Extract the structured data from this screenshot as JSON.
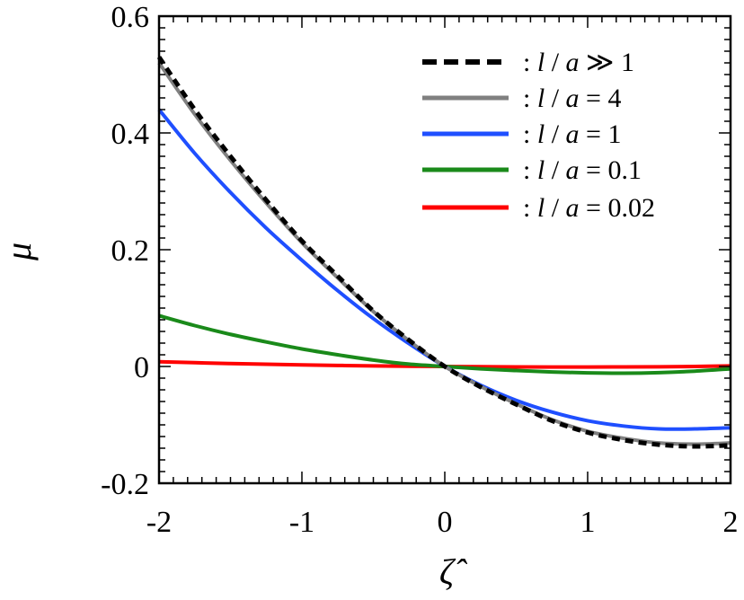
{
  "chart_data": {
    "type": "line",
    "title": "",
    "xlabel": "ζ̂",
    "ylabel": "μ",
    "xlim": [
      -2,
      2
    ],
    "ylim": [
      -0.2,
      0.6
    ],
    "x_ticks": [
      -2,
      -1,
      0,
      1,
      2
    ],
    "x_tick_labels": [
      "-2",
      "-1",
      "0",
      "1",
      "2"
    ],
    "y_ticks": [
      -0.2,
      0,
      0.2,
      0.4,
      0.6
    ],
    "y_tick_labels": [
      "-0.2",
      "0",
      "0.2",
      "0.4",
      "0.6"
    ],
    "grid": false,
    "legend_position": "top-right",
    "series": [
      {
        "name": ": l / a ≫ 1",
        "legend_prefix": ": ",
        "legend_var1": "l",
        "legend_mid": " / ",
        "legend_var2": "a",
        "legend_rel": " ≫ 1",
        "color": "#000000",
        "dash": true,
        "x": [
          -2,
          -1.75,
          -1.5,
          -1.25,
          -1,
          -0.75,
          -0.5,
          -0.25,
          0,
          0.25,
          0.5,
          0.75,
          1,
          1.25,
          1.5,
          1.75,
          2
        ],
        "y": [
          0.53,
          0.44,
          0.36,
          0.285,
          0.215,
          0.155,
          0.095,
          0.045,
          0.0,
          -0.035,
          -0.065,
          -0.093,
          -0.113,
          -0.126,
          -0.134,
          -0.137,
          -0.135
        ]
      },
      {
        "name": ": l / a = 4",
        "legend_prefix": ": ",
        "legend_var1": "l",
        "legend_mid": " / ",
        "legend_var2": "a",
        "legend_rel": " = 4",
        "color": "#808080",
        "dash": false,
        "x": [
          -2,
          -1.75,
          -1.5,
          -1.25,
          -1,
          -0.75,
          -0.5,
          -0.25,
          0,
          0.25,
          0.5,
          0.75,
          1,
          1.25,
          1.5,
          1.75,
          2
        ],
        "y": [
          0.52,
          0.432,
          0.353,
          0.28,
          0.212,
          0.152,
          0.094,
          0.044,
          0.0,
          -0.034,
          -0.064,
          -0.091,
          -0.111,
          -0.123,
          -0.131,
          -0.133,
          -0.131
        ]
      },
      {
        "name": ": l / a = 1",
        "legend_prefix": ": ",
        "legend_var1": "l",
        "legend_mid": " / ",
        "legend_var2": "a",
        "legend_rel": " = 1",
        "color": "#1f4fff",
        "dash": false,
        "x": [
          -2,
          -1.75,
          -1.5,
          -1.25,
          -1,
          -0.75,
          -0.5,
          -0.25,
          0,
          0.25,
          0.5,
          0.75,
          1,
          1.25,
          1.5,
          1.75,
          2
        ],
        "y": [
          0.44,
          0.365,
          0.298,
          0.237,
          0.182,
          0.13,
          0.082,
          0.039,
          0.0,
          -0.032,
          -0.058,
          -0.078,
          -0.093,
          -0.102,
          -0.107,
          -0.107,
          -0.105
        ]
      },
      {
        "name": ": l / a = 0.1",
        "legend_prefix": ": ",
        "legend_var1": "l",
        "legend_mid": " / ",
        "legend_var2": "a",
        "legend_rel": " = 0.1",
        "color": "#1a8a1a",
        "dash": false,
        "x": [
          -2,
          -1.75,
          -1.5,
          -1.25,
          -1,
          -0.75,
          -0.5,
          -0.25,
          0,
          0.25,
          0.5,
          0.75,
          1,
          1.25,
          1.5,
          1.75,
          2
        ],
        "y": [
          0.087,
          0.07,
          0.055,
          0.042,
          0.03,
          0.02,
          0.011,
          0.004,
          0.0,
          -0.004,
          -0.007,
          -0.0095,
          -0.011,
          -0.0115,
          -0.0105,
          -0.008,
          -0.004
        ]
      },
      {
        "name": ": l / a = 0.02",
        "legend_prefix": ": ",
        "legend_var1": "l",
        "legend_mid": " / ",
        "legend_var2": "a",
        "legend_rel": " = 0.02",
        "color": "#ff0000",
        "dash": false,
        "x": [
          -2,
          -1.75,
          -1.5,
          -1.25,
          -1,
          -0.75,
          -0.5,
          -0.25,
          0,
          0.25,
          0.5,
          0.75,
          1,
          1.25,
          1.5,
          1.75,
          2
        ],
        "y": [
          0.008,
          0.0065,
          0.005,
          0.0038,
          0.0027,
          0.0018,
          0.001,
          0.0004,
          0.0,
          -0.0004,
          -0.0007,
          -0.0009,
          -0.001,
          -0.0008,
          -0.0005,
          0.0,
          0.001
        ]
      }
    ]
  }
}
